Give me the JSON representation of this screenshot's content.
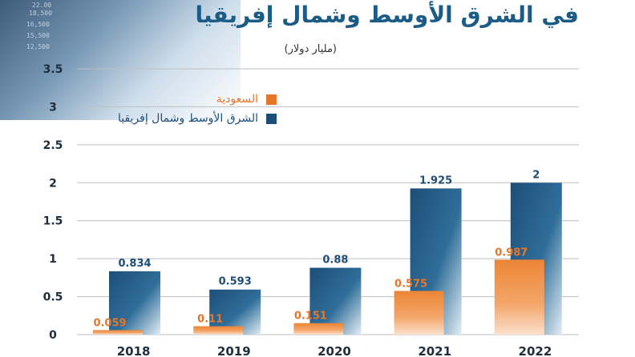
{
  "header": {
    "title": "في الشرق الأوسط وشمال إفريقيا",
    "unit": "(مليار دولار)",
    "ticker_values": [
      "22.00",
      "18,500",
      "16,500",
      "15,500",
      "12,500"
    ]
  },
  "colors": {
    "saudi": "#e6762a",
    "mena": "#1d4e78",
    "title": "#1b5c86",
    "axis_text": "#1f2d3d",
    "gridline": "#bfbfbf"
  },
  "chart_data": {
    "type": "bar",
    "categories": [
      "2018",
      "2019",
      "2020",
      "2021",
      "2022"
    ],
    "series": [
      {
        "name": "السعودية",
        "values": [
          0.059,
          0.11,
          0.151,
          0.575,
          0.987
        ],
        "labels": [
          "0.059",
          "0.11",
          "0.151",
          "0.575",
          "0.987"
        ]
      },
      {
        "name": "الشرق الأوسط وشمال إفريقيا",
        "values": [
          0.834,
          0.593,
          0.88,
          1.925,
          2
        ],
        "labels": [
          "0.834",
          "0.593",
          "0.88",
          "1.925",
          "2"
        ]
      }
    ],
    "yticks": [
      "0",
      "0.5",
      "1",
      "1.5",
      "2",
      "2.5",
      "3",
      "3.5"
    ],
    "ylim": [
      0,
      3.5
    ],
    "grid": true,
    "legend_position": "top-left"
  }
}
